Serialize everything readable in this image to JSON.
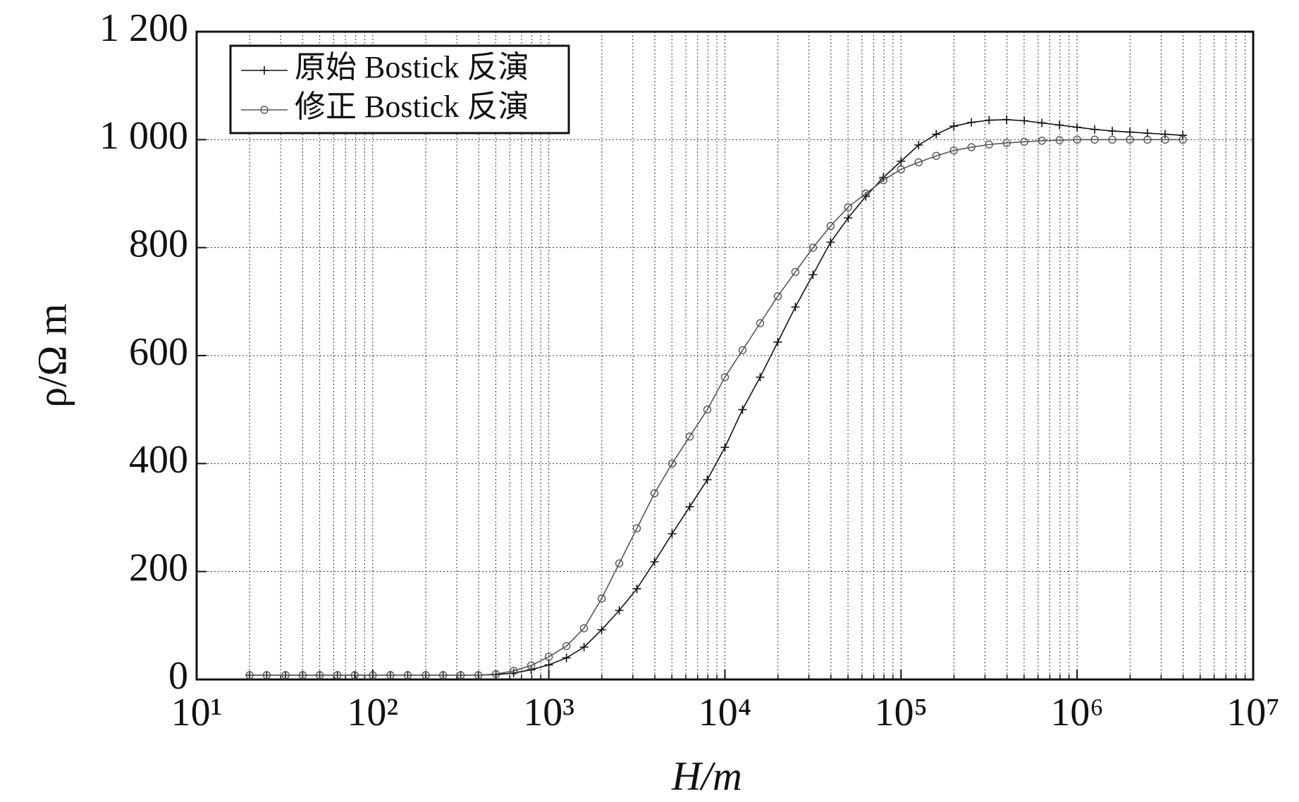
{
  "chart_data": {
    "type": "line",
    "xlabel": "H/m",
    "ylabel": "ρ/Ω m",
    "xscale": "log",
    "grid": true,
    "legend": "upper left",
    "xlim": [
      10,
      10000000
    ],
    "xticks": [
      {
        "value": 10,
        "label": "10¹"
      },
      {
        "value": 100,
        "label": "10²"
      },
      {
        "value": 1000,
        "label": "10³"
      },
      {
        "value": 10000,
        "label": "10⁴"
      },
      {
        "value": 100000,
        "label": "10⁵"
      },
      {
        "value": 1000000,
        "label": "10⁶"
      },
      {
        "value": 10000000,
        "label": "10⁷"
      }
    ],
    "ylim": [
      0,
      1200
    ],
    "yticks": [
      0,
      200,
      400,
      600,
      800,
      {
        "value": 1000,
        "label": "1 000"
      },
      {
        "value": 1200,
        "label": "1 200"
      }
    ],
    "x": [
      20,
      25,
      32,
      40,
      50,
      63,
      79,
      100,
      126,
      158,
      200,
      251,
      316,
      398,
      501,
      631,
      794,
      1000,
      1259,
      1585,
      1995,
      2512,
      3162,
      3981,
      5012,
      6310,
      7943,
      10000,
      12589,
      15849,
      19953,
      25119,
      31623,
      39811,
      50119,
      63096,
      79433,
      100000,
      125893,
      158489,
      199526,
      251189,
      316228,
      398107,
      501187,
      630957,
      794328,
      1000000,
      1258925,
      1584893,
      1995262,
      2511886,
      3162278,
      3981072
    ],
    "series": [
      {
        "name": "原始 Bostick 反演",
        "color": "#111111",
        "marker": "+",
        "values": [
          8,
          8,
          8,
          8,
          8,
          8,
          8,
          8,
          8,
          8,
          8,
          8,
          8,
          8,
          9,
          12,
          18,
          27,
          40,
          60,
          92,
          128,
          168,
          218,
          270,
          320,
          370,
          430,
          500,
          560,
          625,
          690,
          750,
          810,
          855,
          895,
          930,
          960,
          990,
          1010,
          1025,
          1032,
          1036,
          1037,
          1035,
          1031,
          1027,
          1023,
          1019,
          1016,
          1014,
          1012,
          1010,
          1008
        ]
      },
      {
        "name": "修正 Bostick 反演",
        "color": "#555555",
        "marker": "o",
        "values": [
          8,
          8,
          8,
          8,
          8,
          8,
          8,
          8,
          8,
          8,
          8,
          8,
          8,
          8,
          10,
          16,
          26,
          42,
          62,
          95,
          150,
          215,
          280,
          345,
          400,
          450,
          500,
          560,
          610,
          660,
          710,
          755,
          800,
          840,
          875,
          900,
          925,
          945,
          958,
          970,
          980,
          986,
          991,
          994,
          996,
          998,
          999,
          1000,
          1000,
          1000,
          1000,
          1000,
          1000,
          1000
        ]
      }
    ]
  }
}
